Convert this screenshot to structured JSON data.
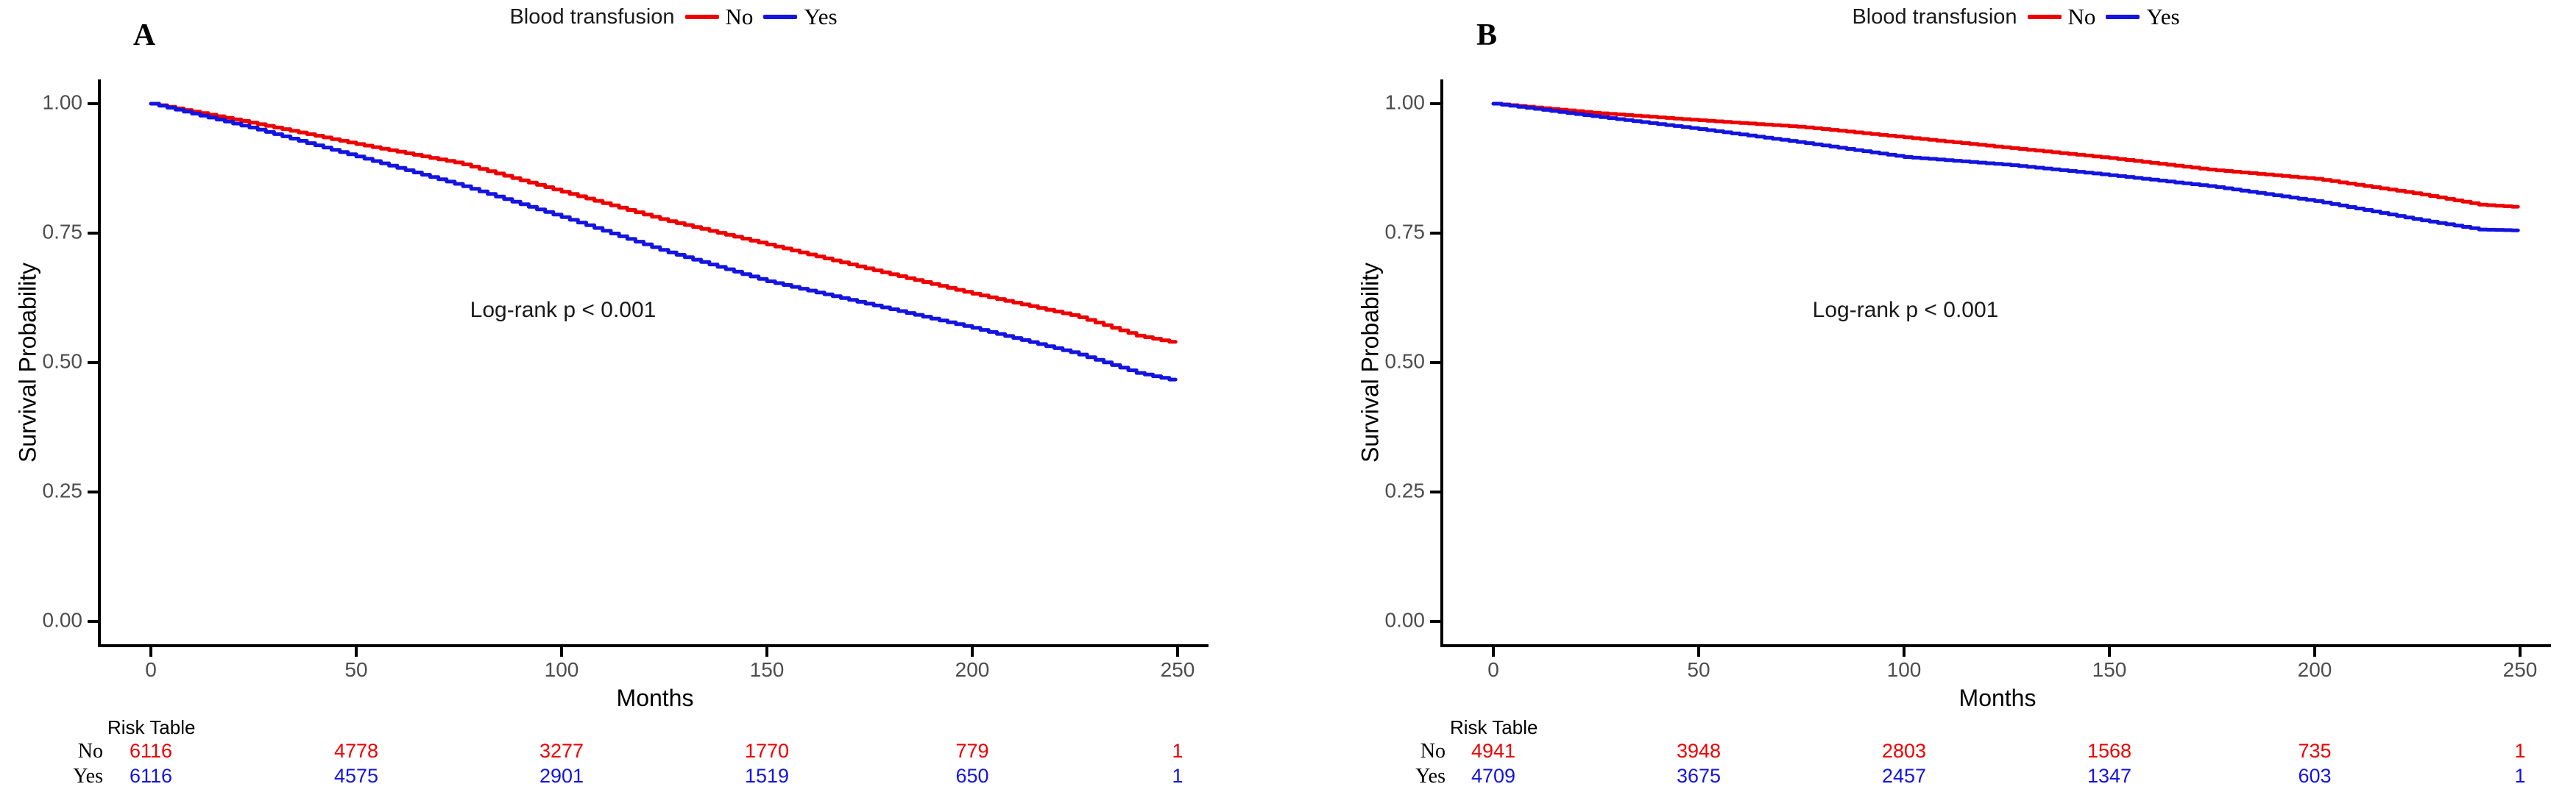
{
  "figure_title": "",
  "accent_colors": {
    "no": "#EE0000",
    "yes": "#1414E0",
    "axis": "#000000",
    "tick_text": "#4d4d4d"
  },
  "chart_data": [
    {
      "type": "line",
      "panel_label": "A",
      "legend": {
        "title": "Blood transfusion",
        "items": [
          {
            "label": "No",
            "color": "#EE0000"
          },
          {
            "label": "Yes",
            "color": "#1414E0"
          }
        ]
      },
      "ylabel": "Survival Probability",
      "xlabel": "Months",
      "annotation": "Log-rank p < 0.001",
      "xlim": [
        0,
        250
      ],
      "ylim": [
        0,
        1
      ],
      "grid": false,
      "legend_position": "top",
      "x_tick_labels": [
        "0",
        "50",
        "100",
        "150",
        "200",
        "250"
      ],
      "y_tick_labels": [
        "1.00",
        "0.75",
        "0.50",
        "0.25",
        "0.00"
      ],
      "series": [
        {
          "name": "No",
          "color": "#EE0000",
          "x": [
            0,
            25,
            50,
            75,
            100,
            125,
            150,
            175,
            200,
            225,
            240,
            250
          ],
          "y": [
            1.0,
            0.962,
            0.922,
            0.885,
            0.83,
            0.775,
            0.728,
            0.68,
            0.633,
            0.59,
            0.552,
            0.537
          ]
        },
        {
          "name": "Yes",
          "color": "#1414E0",
          "x": [
            0,
            25,
            50,
            75,
            100,
            125,
            150,
            175,
            200,
            225,
            240,
            250
          ],
          "y": [
            1.0,
            0.952,
            0.898,
            0.843,
            0.781,
            0.715,
            0.657,
            0.612,
            0.567,
            0.518,
            0.48,
            0.464
          ]
        }
      ],
      "risk_table": {
        "title": "Risk Table",
        "time_points": [
          0,
          50,
          100,
          150,
          200,
          250
        ],
        "rows": [
          {
            "label": "No",
            "color": "#EE0000",
            "counts": [
              "6116",
              "4778",
              "3277",
              "1770",
              "779",
              "1"
            ]
          },
          {
            "label": "Yes",
            "color": "#1414E0",
            "counts": [
              "6116",
              "4575",
              "2901",
              "1519",
              "650",
              "1"
            ]
          }
        ]
      }
    },
    {
      "type": "line",
      "panel_label": "B",
      "legend": {
        "title": "Blood transfusion",
        "items": [
          {
            "label": "No",
            "color": "#EE0000"
          },
          {
            "label": "Yes",
            "color": "#1414E0"
          }
        ]
      },
      "ylabel": "Survival Probability",
      "xlabel": "Months",
      "annotation": "Log-rank p < 0.001",
      "xlim": [
        0,
        250
      ],
      "ylim": [
        0,
        1
      ],
      "grid": false,
      "legend_position": "top",
      "x_tick_labels": [
        "0",
        "50",
        "100",
        "150",
        "200",
        "250"
      ],
      "y_tick_labels": [
        "1.00",
        "0.75",
        "0.50",
        "0.25",
        "0.00"
      ],
      "series": [
        {
          "name": "No",
          "color": "#EE0000",
          "x": [
            0,
            25,
            50,
            75,
            100,
            125,
            150,
            175,
            200,
            225,
            240,
            250
          ],
          "y": [
            1.0,
            0.982,
            0.968,
            0.955,
            0.935,
            0.915,
            0.895,
            0.872,
            0.855,
            0.826,
            0.805,
            0.8
          ]
        },
        {
          "name": "Yes",
          "color": "#1414E0",
          "x": [
            0,
            25,
            50,
            75,
            100,
            125,
            150,
            175,
            200,
            225,
            240,
            250
          ],
          "y": [
            1.0,
            0.975,
            0.951,
            0.925,
            0.897,
            0.882,
            0.862,
            0.84,
            0.812,
            0.776,
            0.757,
            0.755
          ]
        }
      ],
      "risk_table": {
        "title": "Risk Table",
        "time_points": [
          0,
          50,
          100,
          150,
          200,
          250
        ],
        "rows": [
          {
            "label": "No",
            "color": "#EE0000",
            "counts": [
              "4941",
              "3948",
              "2803",
              "1568",
              "735",
              "1"
            ]
          },
          {
            "label": "Yes",
            "color": "#1414E0",
            "counts": [
              "4709",
              "3675",
              "2457",
              "1347",
              "603",
              "1"
            ]
          }
        ]
      }
    }
  ]
}
